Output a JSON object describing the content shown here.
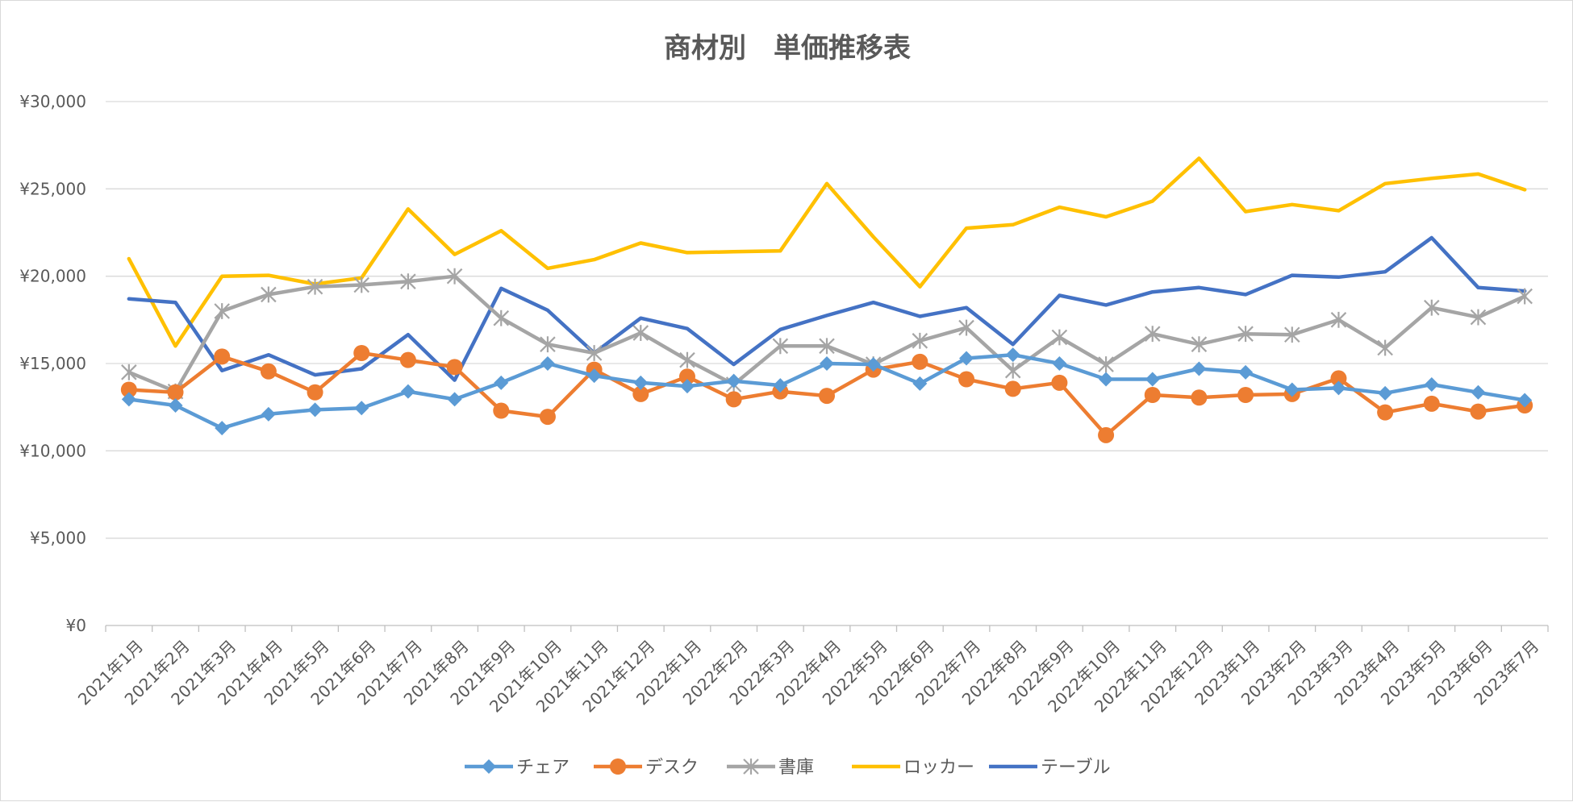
{
  "chart_data": {
    "type": "line",
    "title": "商材別　単価推移表",
    "xlabel": "",
    "ylabel": "",
    "ylim": [
      0,
      30000
    ],
    "yticks": [
      0,
      5000,
      10000,
      15000,
      20000,
      25000,
      30000
    ],
    "ytick_labels": [
      "¥0",
      "¥5,000",
      "¥10,000",
      "¥15,000",
      "¥20,000",
      "¥25,000",
      "¥30,000"
    ],
    "grid": true,
    "legend_position": "bottom",
    "categories": [
      "2021年1月",
      "2021年2月",
      "2021年3月",
      "2021年4月",
      "2021年5月",
      "2021年6月",
      "2021年7月",
      "2021年8月",
      "2021年9月",
      "2021年10月",
      "2021年11月",
      "2021年12月",
      "2022年1月",
      "2022年2月",
      "2022年3月",
      "2022年4月",
      "2022年5月",
      "2022年6月",
      "2022年7月",
      "2022年8月",
      "2022年9月",
      "2022年10月",
      "2022年11月",
      "2022年12月",
      "2023年1月",
      "2023年2月",
      "2023年3月",
      "2023年4月",
      "2023年5月",
      "2023年6月",
      "2023年7月"
    ],
    "series": [
      {
        "name": "チェア",
        "color": "#5b9bd5",
        "marker": "diamond",
        "values": [
          12950,
          12600,
          11300,
          12100,
          12350,
          12450,
          13400,
          12950,
          13900,
          15000,
          14300,
          13900,
          13700,
          14000,
          13750,
          15000,
          14950,
          13850,
          15300,
          15500,
          15000,
          14100,
          14100,
          14700,
          14500,
          13500,
          13600,
          13300,
          13800,
          13350,
          12900
        ]
      },
      {
        "name": "デスク",
        "color": "#ed7d31",
        "marker": "circle",
        "values": [
          13500,
          13350,
          15400,
          14550,
          13350,
          15600,
          15200,
          14800,
          12300,
          11950,
          14650,
          13250,
          14250,
          12950,
          13400,
          13150,
          14650,
          15100,
          14100,
          13550,
          13900,
          10900,
          13200,
          13050,
          13200,
          13250,
          14150,
          12200,
          12700,
          12250,
          12600
        ]
      },
      {
        "name": "書庫",
        "color": "#a5a5a5",
        "marker": "star",
        "values": [
          14500,
          13400,
          18000,
          18950,
          19400,
          19500,
          19700,
          20000,
          17600,
          16100,
          15600,
          16750,
          15200,
          13800,
          16000,
          16000,
          14950,
          16300,
          17050,
          14600,
          16500,
          14950,
          16700,
          16100,
          16700,
          16650,
          17500,
          15900,
          18200,
          17650,
          18850
        ]
      },
      {
        "name": "ロッカー",
        "color": "#ffc000",
        "marker": "none",
        "values": [
          21000,
          16000,
          20000,
          20050,
          19550,
          19900,
          23850,
          21250,
          22600,
          20450,
          20950,
          21900,
          21350,
          21400,
          21450,
          25300,
          22250,
          19400,
          22750,
          22950,
          23950,
          23400,
          24300,
          26750,
          23700,
          24100,
          23750,
          25300,
          25600,
          25850,
          24950
        ]
      },
      {
        "name": "テーブル",
        "color": "#4472c4",
        "marker": "none",
        "values": [
          18700,
          18500,
          14600,
          15500,
          14350,
          14700,
          16650,
          14050,
          19300,
          18050,
          15600,
          17600,
          17000,
          14950,
          16950,
          17750,
          18500,
          17700,
          18200,
          16100,
          18900,
          18350,
          19100,
          19350,
          18950,
          20050,
          19950,
          20250,
          22200,
          19350,
          19150
        ]
      }
    ]
  }
}
